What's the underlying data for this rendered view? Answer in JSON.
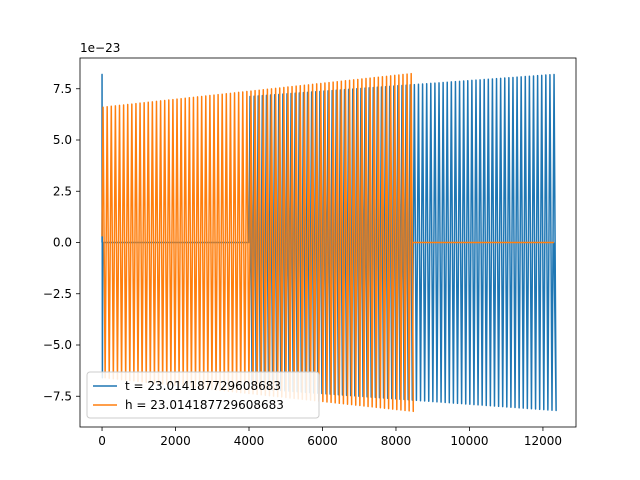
{
  "chart_data": {
    "type": "line",
    "title": "",
    "xlabel": "",
    "ylabel": "",
    "y_offset_label": "1e−23",
    "xlim": [
      -600,
      12900
    ],
    "ylim": [
      -9.0,
      9.0
    ],
    "x_ticks": [
      0,
      2000,
      4000,
      6000,
      8000,
      10000,
      12000
    ],
    "x_tick_labels": [
      "0",
      "2000",
      "4000",
      "6000",
      "8000",
      "10000",
      "12000"
    ],
    "y_ticks": [
      -7.5,
      -5.0,
      -2.5,
      0.0,
      2.5,
      5.0,
      7.5
    ],
    "y_tick_labels": [
      "−7.5",
      "−5.0",
      "−2.5",
      "0.0",
      "2.5",
      "5.0",
      "7.5"
    ],
    "grid": false,
    "legend_position": "lower-left",
    "series": [
      {
        "name": "t = 23.014187729608683",
        "color": "#1f77b4",
        "x_range": [
          0,
          12300
        ],
        "oscillation_start": 4000,
        "initial_spike": 8.2,
        "amplitude_start": 6.6,
        "amplitude_end": 8.2,
        "cycles": 110
      },
      {
        "name": "h = 23.014187729608683",
        "color": "#ff7f0e",
        "x_range": [
          0,
          12300
        ],
        "oscillation_start": 0,
        "oscillation_end": 8450,
        "amplitude_start": 6.6,
        "amplitude_end": 8.25,
        "cycles": 110
      }
    ]
  }
}
